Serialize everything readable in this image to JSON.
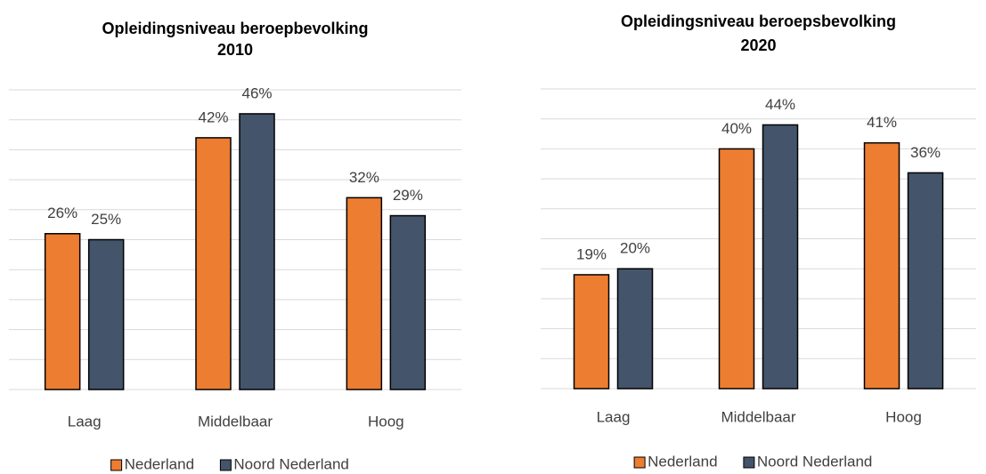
{
  "chart_data": [
    {
      "type": "bar",
      "title": [
        "Opleidingsniveau beroepbevolking",
        "2010"
      ],
      "categories": [
        "Laag",
        "Middelbaar",
        "Hoog"
      ],
      "series": [
        {
          "name": "Nederland",
          "color": "#ed7d31",
          "values": [
            26,
            42,
            32
          ],
          "value_labels": [
            "26%",
            "42%",
            "32%"
          ]
        },
        {
          "name": "Noord Nederland",
          "color": "#44546a",
          "values": [
            25,
            46,
            29
          ],
          "value_labels": [
            "25%",
            "46%",
            "29%"
          ]
        }
      ],
      "ylim": [
        0,
        50
      ],
      "yticks": [
        0,
        5,
        10,
        15,
        20,
        25,
        30,
        35,
        40,
        45,
        50
      ],
      "grid": true,
      "legend": "bottom"
    },
    {
      "type": "bar",
      "title": [
        "Opleidingsniveau beroepsbevolking",
        "2020"
      ],
      "categories": [
        "Laag",
        "Middelbaar",
        "Hoog"
      ],
      "series": [
        {
          "name": "Nederland",
          "color": "#ed7d31",
          "values": [
            19,
            40,
            41
          ],
          "value_labels": [
            "19%",
            "40%",
            "41%"
          ]
        },
        {
          "name": "Noord Nederland",
          "color": "#44546a",
          "values": [
            20,
            44,
            36
          ],
          "value_labels": [
            "20%",
            "44%",
            "36%"
          ]
        }
      ],
      "ylim": [
        0,
        50
      ],
      "yticks": [
        0,
        5,
        10,
        15,
        20,
        25,
        30,
        35,
        40,
        45,
        50
      ],
      "grid": true,
      "legend": "bottom"
    }
  ]
}
